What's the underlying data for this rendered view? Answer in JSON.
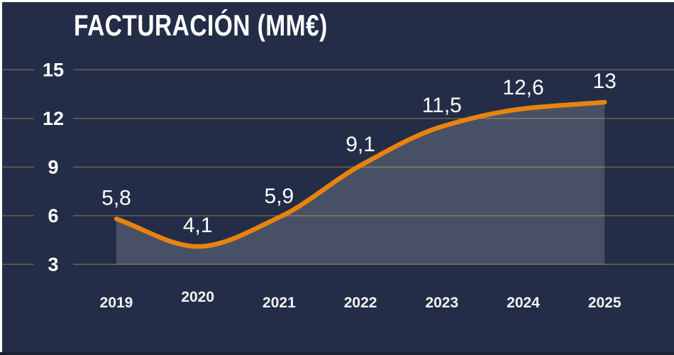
{
  "chart_data": {
    "type": "line",
    "area_fill": true,
    "title": "FACTURACIÓN (MM€)",
    "categories": [
      "2019",
      "2020",
      "2021",
      "2022",
      "2023",
      "2024",
      "2025"
    ],
    "values": [
      5.8,
      4.1,
      5.9,
      9.1,
      11.5,
      12.6,
      13
    ],
    "value_labels": [
      "5,8",
      "4,1",
      "5,9",
      "9,1",
      "11,5",
      "12,6",
      "13"
    ],
    "xlabel": "",
    "ylabel": "",
    "ylim": [
      3,
      15
    ],
    "y_ticks": [
      3,
      6,
      9,
      12,
      15
    ],
    "grid": true,
    "legend": false,
    "colors": {
      "background": "#232d47",
      "line": "#e9830f",
      "area": "rgba(255,255,255,0.17)",
      "grid": "#6f684c",
      "text": "#ffffff"
    }
  }
}
